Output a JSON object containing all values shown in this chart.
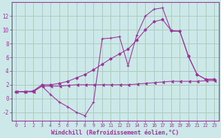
{
  "xlabel": "Windchill (Refroidissement éolien,°C)",
  "bg_color": "#cce8e8",
  "grid_color": "#aaccbb",
  "line_color": "#993399",
  "xlim": [
    -0.5,
    23.5
  ],
  "ylim": [
    -3.2,
    14.0
  ],
  "xticks": [
    0,
    1,
    2,
    3,
    4,
    5,
    6,
    7,
    8,
    9,
    10,
    11,
    12,
    13,
    14,
    15,
    16,
    17,
    18,
    19,
    20,
    21,
    22,
    23
  ],
  "yticks": [
    -2,
    0,
    2,
    4,
    6,
    8,
    10,
    12
  ],
  "line1_x": [
    0,
    1,
    2,
    3,
    4,
    5,
    6,
    7,
    8,
    9,
    10,
    11,
    12,
    13,
    14,
    15,
    16,
    17,
    18,
    19,
    20,
    21,
    22,
    23
  ],
  "line1_y": [
    1.0,
    1.0,
    1.0,
    1.8,
    1.8,
    1.8,
    1.9,
    2.0,
    2.0,
    2.0,
    2.0,
    2.0,
    2.0,
    2.0,
    2.1,
    2.2,
    2.3,
    2.4,
    2.5,
    2.5,
    2.5,
    2.5,
    2.6,
    2.6
  ],
  "line2_x": [
    0,
    1,
    2,
    3,
    4,
    5,
    6,
    7,
    8,
    9,
    10,
    11,
    12,
    13,
    14,
    15,
    16,
    17,
    18,
    19,
    20,
    21,
    22,
    23
  ],
  "line2_y": [
    1.0,
    1.0,
    1.0,
    1.8,
    0.6,
    -0.5,
    -1.2,
    -2.0,
    -2.5,
    -0.5,
    8.7,
    8.8,
    9.0,
    4.8,
    9.2,
    12.0,
    13.0,
    13.2,
    9.8,
    9.8,
    6.1,
    3.5,
    2.8,
    2.8
  ],
  "line3_x": [
    0,
    1,
    2,
    3,
    4,
    5,
    6,
    7,
    8,
    9,
    10,
    11,
    12,
    13,
    14,
    15,
    16,
    17,
    18,
    19,
    20,
    21,
    22,
    23
  ],
  "line3_y": [
    1.0,
    1.0,
    1.1,
    2.0,
    2.0,
    2.2,
    2.5,
    3.0,
    3.5,
    4.2,
    5.0,
    5.8,
    6.5,
    7.2,
    8.5,
    10.0,
    11.2,
    11.5,
    9.9,
    9.8,
    6.2,
    3.5,
    2.8,
    2.8
  ]
}
